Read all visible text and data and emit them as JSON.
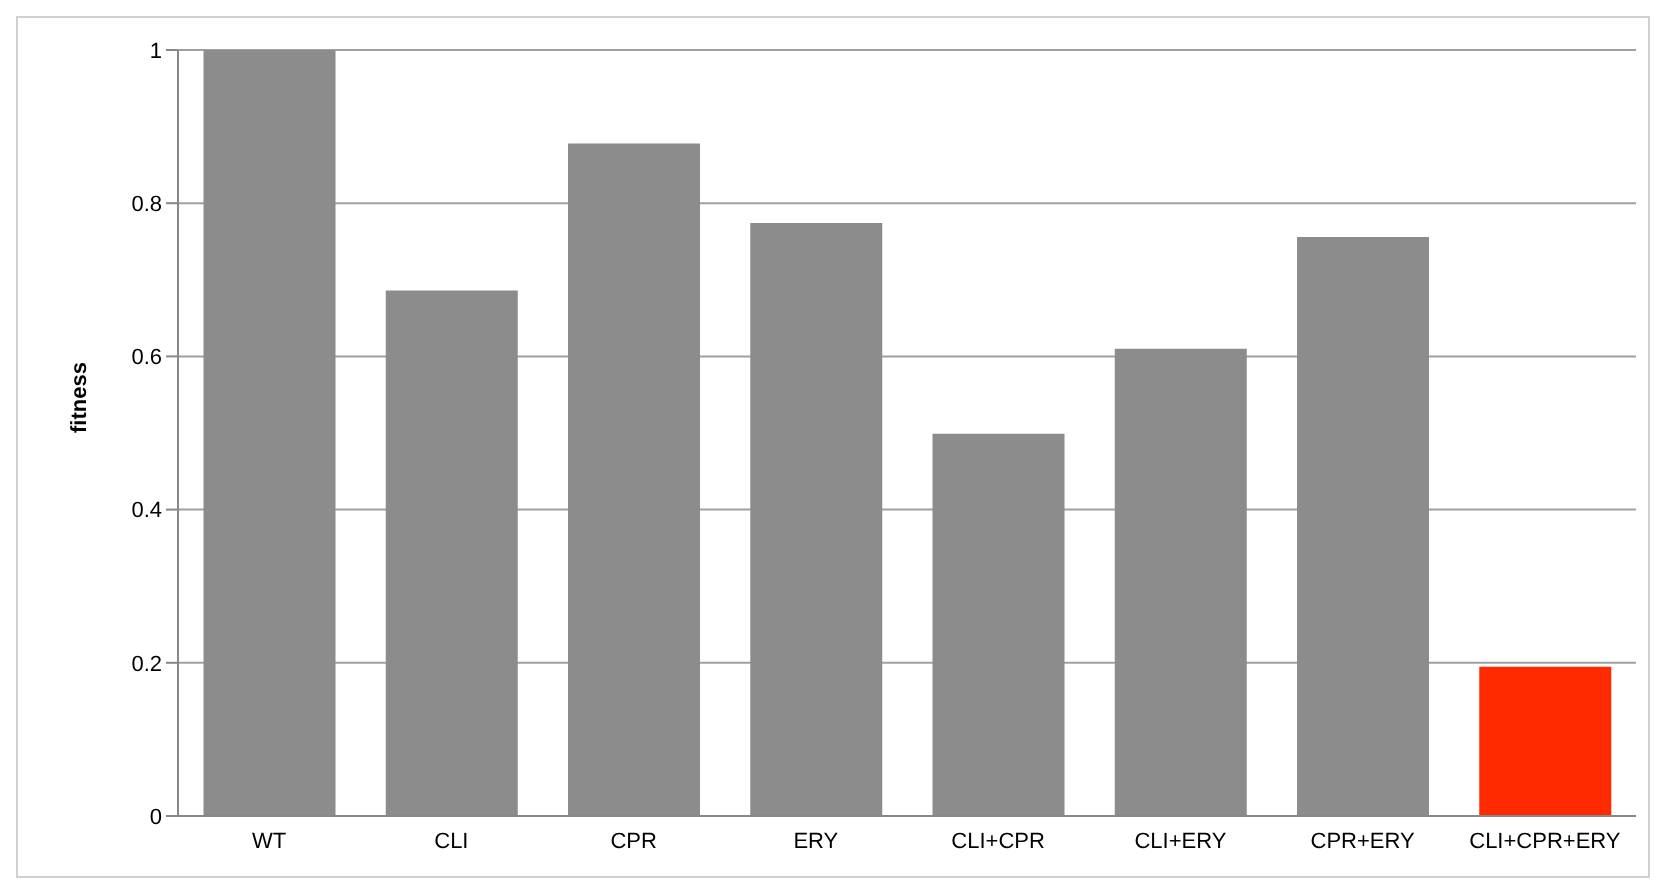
{
  "chart_data": {
    "type": "bar",
    "ylabel": "fitness",
    "categories": [
      "WT",
      "CLI",
      "CPR",
      "ERY",
      "CLI+CPR",
      "CLI+ERY",
      "CPR+ERY",
      "CLI+CPR+ERY"
    ],
    "values": [
      1.0,
      0.686,
      0.878,
      0.774,
      0.499,
      0.61,
      0.756,
      0.195
    ],
    "colors": [
      "#8c8c8c",
      "#8c8c8c",
      "#8c8c8c",
      "#8c8c8c",
      "#8c8c8c",
      "#8c8c8c",
      "#8c8c8c",
      "#ff2a00"
    ],
    "ylim": [
      0,
      1
    ],
    "yticks": [
      0,
      0.2,
      0.4,
      0.6,
      0.8,
      1
    ],
    "grid": "y",
    "legend": false
  }
}
